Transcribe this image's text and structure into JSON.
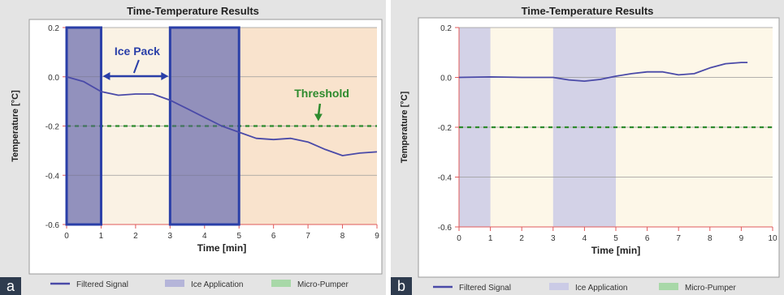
{
  "chart_data": [
    {
      "panel_label": "a",
      "type": "line",
      "title": "Time-Temperature Results",
      "xlabel": "Time [min]",
      "ylabel": "Temperature [°C]",
      "xlim": [
        0,
        9
      ],
      "ylim": [
        -0.6,
        0.2
      ],
      "xticks": [
        "0",
        "1",
        "2",
        "3",
        "4",
        "5",
        "6",
        "7",
        "8",
        "9"
      ],
      "yticks": [
        "0.2",
        "0.0",
        "-0.2",
        "-0.4",
        "-0.6"
      ],
      "series": [
        {
          "name": "Filtered Signal",
          "color": "#4a4aa8",
          "x": [
            0,
            0.5,
            1.0,
            1.5,
            2.0,
            2.5,
            3.0,
            3.5,
            4.0,
            4.5,
            5.0,
            5.5,
            6.0,
            6.5,
            7.0,
            7.5,
            8.0,
            8.5,
            9.0
          ],
          "y": [
            0.0,
            -0.02,
            -0.06,
            -0.075,
            -0.07,
            -0.07,
            -0.095,
            -0.13,
            -0.165,
            -0.2,
            -0.225,
            -0.25,
            -0.255,
            -0.25,
            -0.265,
            -0.295,
            -0.32,
            -0.31,
            -0.305
          ]
        }
      ],
      "ice_application": [
        [
          0,
          1
        ],
        [
          3,
          5
        ]
      ],
      "threshold": {
        "name": "Micro-Pumper",
        "value": -0.2,
        "color": "#2e8b2e"
      },
      "highlight_boxes": [
        [
          0,
          1
        ],
        [
          3,
          5
        ]
      ],
      "annotations": {
        "ice_pack": "Ice Pack",
        "threshold": "Threshold"
      },
      "legend": [
        "Filtered Signal",
        "Ice Application",
        "Micro-Pumper"
      ],
      "colors": {
        "signal": "#4a4aa8",
        "ice": "#b5b5d9",
        "box": "#2a3fa8",
        "threshold": "#2e8b2e",
        "bg_pre": "#faf2e4",
        "bg_post": "#f9e3cd"
      }
    },
    {
      "panel_label": "b",
      "type": "line",
      "title": "Time-Temperature Results",
      "xlabel": "Time [min]",
      "ylabel": "Temperature [°C]",
      "xlim": [
        0,
        10
      ],
      "ylim": [
        -0.6,
        0.2
      ],
      "xticks": [
        "0",
        "1",
        "2",
        "3",
        "4",
        "5",
        "6",
        "7",
        "8",
        "9",
        "10"
      ],
      "yticks": [
        "0.2",
        "0.0",
        "-0.2",
        "-0.4",
        "-0.6"
      ],
      "series": [
        {
          "name": "Filtered Signal",
          "color": "#4a4aa8",
          "x": [
            0,
            1.0,
            2.0,
            3.0,
            3.5,
            4.0,
            4.5,
            5.0,
            5.5,
            6.0,
            6.5,
            7.0,
            7.5,
            8.0,
            8.5,
            9.0,
            9.2
          ],
          "y": [
            0.0,
            0.002,
            0.0,
            0.0,
            -0.01,
            -0.015,
            -0.008,
            0.005,
            0.015,
            0.022,
            0.022,
            0.01,
            0.015,
            0.038,
            0.055,
            0.06,
            0.06
          ]
        }
      ],
      "ice_application": [
        [
          0,
          1
        ],
        [
          3,
          5
        ]
      ],
      "threshold": {
        "name": "Micro-Pumper",
        "value": -0.2,
        "color": "#2e8b2e"
      },
      "legend": [
        "Filtered Signal",
        "Ice Application",
        "Micro-Pumper"
      ],
      "colors": {
        "signal": "#4a4aa8",
        "ice": "#cbcbe6",
        "threshold": "#2e8b2e",
        "bg": "#fdf7e8"
      }
    }
  ]
}
